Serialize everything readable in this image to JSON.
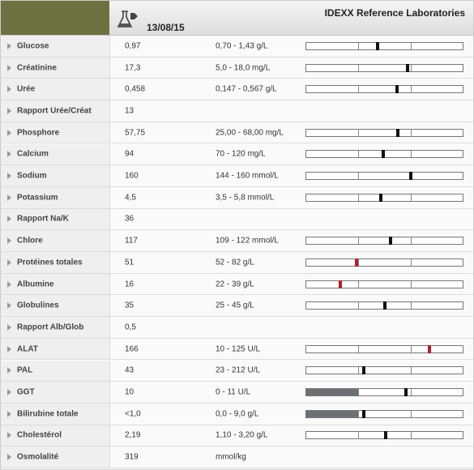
{
  "header": {
    "date": "13/08/15",
    "lab": "IDEXX Reference Laboratories"
  },
  "rows": [
    {
      "name": "Glucose",
      "result": {
        "value": 0.97,
        "label": "0,97"
      },
      "range": {
        "low": 0.7,
        "high": 1.43,
        "label": "0,70 - 1,43 g/L"
      }
    },
    {
      "name": "Créatinine",
      "result": {
        "value": 17.3,
        "label": "17,3"
      },
      "range": {
        "low": 5,
        "high": 18,
        "label": "5,0 - 18,0 mg/L"
      }
    },
    {
      "name": "Urée",
      "result": {
        "value": 0.458,
        "label": "0,458"
      },
      "range": {
        "low": 0.147,
        "high": 0.567,
        "label": "0,147 - 0,567 g/L"
      }
    },
    {
      "name": "Rapport Urée/Créat",
      "result": 13
    },
    {
      "name": "Phosphore",
      "result": {
        "value": 57.75,
        "label": "57,75"
      },
      "range": {
        "low": 25,
        "high": 68,
        "label": "25,00 - 68,00 mg/L"
      }
    },
    {
      "name": "Calcium",
      "result": 94,
      "range": {
        "low": 70,
        "high": 120,
        "label": "70 - 120 mg/L"
      }
    },
    {
      "name": "Sodium",
      "result": 160,
      "range": {
        "low": 144,
        "high": 160,
        "label": "144 - 160 mmol/L"
      }
    },
    {
      "name": "Potassium",
      "result": {
        "value": 4.5,
        "label": "4,5"
      },
      "range": {
        "low": 3.5,
        "high": 5.8,
        "label": "3,5 - 5,8 mmol/L"
      }
    },
    {
      "name": "Rapport Na/K",
      "result": 36
    },
    {
      "name": "Chlore",
      "result": 117,
      "range": {
        "low": 109,
        "high": 122,
        "label": "109 - 122 mmol/L"
      }
    },
    {
      "name": "Protéines totales",
      "result": 51,
      "range": {
        "low": 52,
        "high": 82,
        "label": "52 - 82 g/L"
      }
    },
    {
      "name": "Albumine",
      "result": 16,
      "range": {
        "low": 22,
        "high": 39,
        "label": "22 - 39 g/L"
      }
    },
    {
      "name": "Globulines",
      "result": 35,
      "range": {
        "low": 25,
        "high": 45,
        "label": "25 - 45 g/L"
      }
    },
    {
      "name": "Rapport Alb/Glob",
      "result": {
        "value": 0.5,
        "label": "0,5"
      }
    },
    {
      "name": "ALAT",
      "result": 166,
      "range": {
        "low": 10,
        "high": 125,
        "label": "10 - 125 U/L"
      }
    },
    {
      "name": "PAL",
      "result": 43,
      "range": {
        "low": 23,
        "high": 212,
        "label": "23 - 212 U/L"
      }
    },
    {
      "name": "GGT",
      "result": 10,
      "range": {
        "low": 0,
        "high": 11,
        "label": "0 - 11 U/L"
      }
    },
    {
      "name": "Bilirubine totale",
      "result": {
        "value": 1,
        "label": "<1,0"
      },
      "range": {
        "low": 0,
        "high": 9,
        "label": "0,0 - 9,0 g/L"
      }
    },
    {
      "name": "Cholestérol",
      "result": {
        "value": 2.19,
        "label": "2,19"
      },
      "range": {
        "low": 1.1,
        "high": 3.2,
        "label": "1,10 - 3,20 g/L"
      }
    },
    {
      "name": "Osmolalité",
      "result": 319,
      "range": {
        "label": "mmol/kg"
      }
    }
  ]
}
